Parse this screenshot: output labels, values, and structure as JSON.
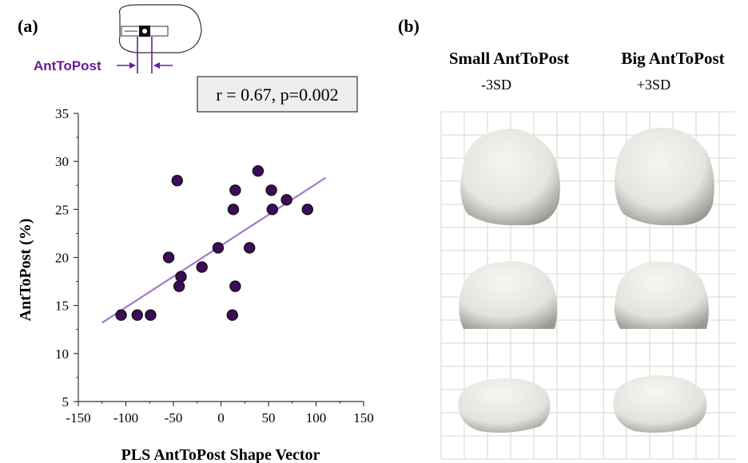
{
  "panel_a_label": "(a)",
  "panel_b_label": "(b)",
  "inset_label": "AntToPost",
  "stats_box": "r = 0.67, p=0.002",
  "colors": {
    "point_fill": "#3d0a5c",
    "point_stroke": "#111111",
    "trend_line": "#a477c7",
    "inset_label": "#6a1b9a",
    "grid": "#d4d4d4",
    "shape_fill": "#ebe9e3",
    "stats_bg": "#eeeeee"
  },
  "panel_b": {
    "columns": [
      {
        "title": "Small AntToPost",
        "subtitle": "-3SD"
      },
      {
        "title": "Big AntToPost",
        "subtitle": "+3SD"
      }
    ],
    "rows": [
      "view-1",
      "view-2",
      "view-3"
    ]
  },
  "chart_data": {
    "type": "scatter",
    "title": "",
    "xlabel": "PLS AntToPost Shape Vector",
    "ylabel": "AntToPost (%)",
    "xlim": [
      -150,
      150
    ],
    "ylim": [
      5,
      35
    ],
    "x_ticks": [
      -150,
      -100,
      -50,
      0,
      50,
      100,
      150
    ],
    "y_ticks": [
      5,
      10,
      15,
      20,
      25,
      30,
      35
    ],
    "grid": false,
    "points": [
      {
        "x": -105,
        "y": 14
      },
      {
        "x": -88,
        "y": 14
      },
      {
        "x": -74,
        "y": 14
      },
      {
        "x": -55,
        "y": 20
      },
      {
        "x": -46,
        "y": 28
      },
      {
        "x": -44,
        "y": 17
      },
      {
        "x": -42,
        "y": 18
      },
      {
        "x": -20,
        "y": 19
      },
      {
        "x": -3,
        "y": 21
      },
      {
        "x": 12,
        "y": 14
      },
      {
        "x": 13,
        "y": 25
      },
      {
        "x": 15,
        "y": 17
      },
      {
        "x": 15,
        "y": 27
      },
      {
        "x": 30,
        "y": 21
      },
      {
        "x": 39,
        "y": 29
      },
      {
        "x": 53,
        "y": 27
      },
      {
        "x": 54,
        "y": 25
      },
      {
        "x": 69,
        "y": 26
      },
      {
        "x": 91,
        "y": 25
      }
    ],
    "trendline": {
      "x": [
        -125,
        110
      ],
      "y": [
        13.2,
        28.3
      ]
    }
  }
}
